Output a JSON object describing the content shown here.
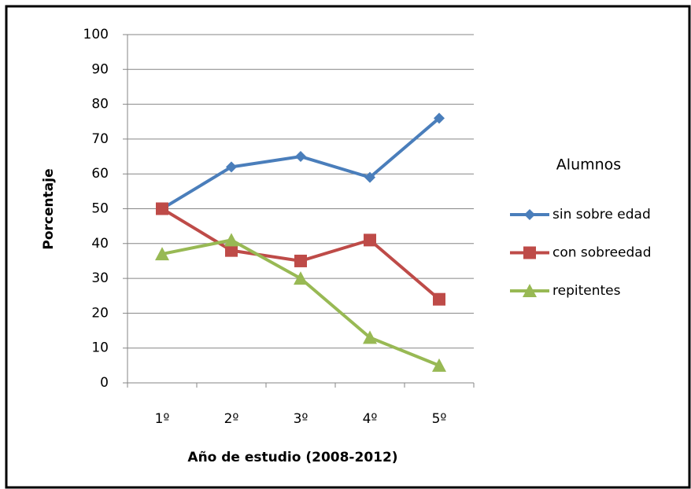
{
  "chart_data": {
    "type": "line",
    "x_label": "Año de estudio (2008-2012)",
    "y_label": "Porcentaje",
    "legend_title": "Alumnos",
    "legend": "right",
    "grid": true,
    "categories": [
      "1º",
      "2º",
      "3º",
      "4º",
      "5º"
    ],
    "ylim": [
      0,
      100
    ],
    "yticks": [
      0,
      10,
      20,
      30,
      40,
      50,
      60,
      70,
      80,
      90,
      100
    ],
    "series": [
      {
        "name": "sin sobre edad",
        "color": "#4a7ebb",
        "marker": "diamond",
        "values": [
          50,
          62,
          65,
          59,
          76
        ]
      },
      {
        "name": "con sobreedad",
        "color": "#be4b48",
        "marker": "square",
        "values": [
          50,
          38,
          35,
          41,
          24
        ]
      },
      {
        "name": "repitentes",
        "color": "#98b954",
        "marker": "triangle",
        "values": [
          37,
          41,
          30,
          13,
          5
        ]
      }
    ]
  }
}
